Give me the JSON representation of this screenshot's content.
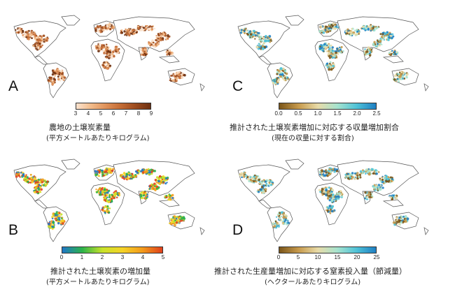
{
  "panels": {
    "a": {
      "letter": "A",
      "caption_line1": "農地の土壌炭素量",
      "caption_line2": "(平方メートルあたりキログラム)",
      "colorbar_ticks": [
        "3",
        "4",
        "5",
        "6",
        "7",
        "8",
        "9"
      ],
      "colors": [
        "#fbe3cf",
        "#f2bb8a",
        "#df9159",
        "#c46c35",
        "#9c4b1e",
        "#6d3010"
      ],
      "map_fill": "brown-orange gradient"
    },
    "b": {
      "letter": "B",
      "caption_line1": "推計された土壌炭素の増加量",
      "caption_line2": "(平方メートルあたりキログラム)",
      "colorbar_ticks": [
        "0",
        "1",
        "2",
        "3",
        "4",
        "5"
      ],
      "colors": [
        "#1f77c8",
        "#2cb34a",
        "#c8e22a",
        "#f5d327",
        "#f39b1c",
        "#e0401c"
      ],
      "map_fill": "rainbow"
    },
    "c": {
      "letter": "C",
      "caption_line1": "推計された土壌炭素増加に対応する収量増加割合",
      "caption_line2": "(現在の収量に対する割合)",
      "colorbar_ticks": [
        "0.0",
        "0.5",
        "1.0",
        "1.5",
        "2.0",
        "2.5"
      ],
      "colors": [
        "#7a5519",
        "#c79a4c",
        "#e8dba8",
        "#a6e3ce",
        "#4fc2d7",
        "#1e7fc3"
      ],
      "map_fill": "brown-to-blue"
    },
    "d": {
      "letter": "D",
      "caption_line1": "推計された生産量増加に対応する窒素投入量（節減量）",
      "caption_line2": "(ヘクタールあたりキログラム)",
      "colorbar_ticks": [
        "0",
        "5",
        "10",
        "15",
        "20",
        "25"
      ],
      "colors": [
        "#7a5519",
        "#c79a4c",
        "#e8dba8",
        "#a6e3ce",
        "#4fc2d7",
        "#1e7fc3"
      ],
      "map_fill": "brown-to-blue"
    }
  }
}
